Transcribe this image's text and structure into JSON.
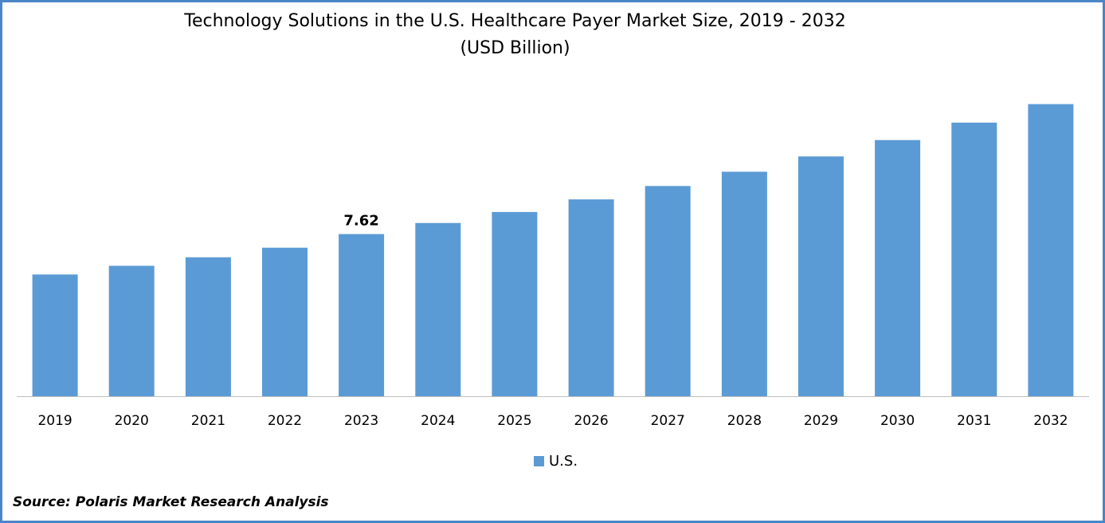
{
  "chart_data": {
    "type": "bar",
    "title": "Technology Solutions in the U.S. Healthcare Payer Market Size, 2019 - 2032",
    "subtitle": "(USD Billion)",
    "categories": [
      "2019",
      "2020",
      "2021",
      "2022",
      "2023",
      "2024",
      "2025",
      "2026",
      "2027",
      "2028",
      "2029",
      "2030",
      "2031",
      "2032"
    ],
    "series": [
      {
        "name": "U.S.",
        "values": [
          5.72,
          6.13,
          6.53,
          6.98,
          7.62,
          8.14,
          8.66,
          9.25,
          9.88,
          10.55,
          11.27,
          12.04,
          12.86,
          13.73
        ]
      }
    ],
    "data_labels": [
      {
        "category": "2023",
        "text": "7.62"
      }
    ],
    "ylim": [
      0,
      14.5
    ],
    "grid": false,
    "legend": "bottom",
    "colors": {
      "bar": "#5b9bd5",
      "frame": "#4a86c6",
      "axis": "#bfbfbf"
    }
  },
  "source": "Source: Polaris Market Research Analysis"
}
